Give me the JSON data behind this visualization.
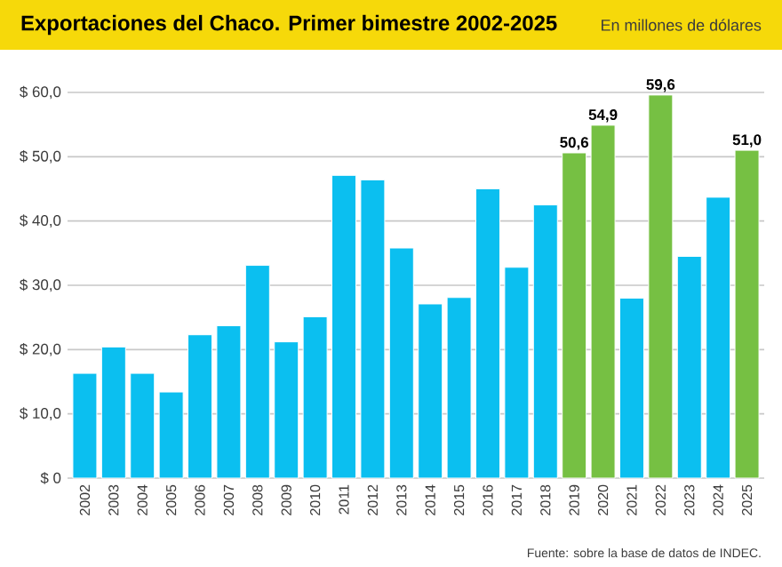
{
  "chart_data": {
    "type": "bar",
    "title": "Exportaciones del Chaco. Primer bimestre 2002-2025",
    "subtitle": "En millones de dólares",
    "categories": [
      "2002",
      "2003",
      "2004",
      "2005",
      "2006",
      "2007",
      "2008",
      "2009",
      "2010",
      "2011",
      "2012",
      "2013",
      "2014",
      "2015",
      "2016",
      "2017",
      "2018",
      "2019",
      "2020",
      "2021",
      "2022",
      "2023",
      "2024",
      "2025"
    ],
    "values": [
      16.3,
      20.4,
      16.3,
      13.4,
      22.3,
      23.7,
      33.1,
      21.2,
      25.1,
      47.1,
      46.4,
      35.8,
      27.1,
      28.1,
      45.0,
      32.8,
      42.5,
      50.6,
      54.9,
      28.0,
      59.6,
      34.5,
      43.7,
      51.0
    ],
    "colors": [
      "#0bbff0",
      "#0bbff0",
      "#0bbff0",
      "#0bbff0",
      "#0bbff0",
      "#0bbff0",
      "#0bbff0",
      "#0bbff0",
      "#0bbff0",
      "#0bbff0",
      "#0bbff0",
      "#0bbff0",
      "#0bbff0",
      "#0bbff0",
      "#0bbff0",
      "#0bbff0",
      "#0bbff0",
      "#76c043",
      "#76c043",
      "#0bbff0",
      "#76c043",
      "#0bbff0",
      "#0bbff0",
      "#76c043"
    ],
    "value_labels": [
      null,
      null,
      null,
      null,
      null,
      null,
      null,
      null,
      null,
      null,
      null,
      null,
      null,
      null,
      null,
      null,
      null,
      "50,6",
      "54,9",
      null,
      "59,6",
      null,
      null,
      "51,0"
    ],
    "ylim": [
      0,
      60
    ],
    "yticks": [
      {
        "value": 0,
        "label": "$ 0"
      },
      {
        "value": 10,
        "label": "$ 10,0"
      },
      {
        "value": 20,
        "label": "$ 20,0"
      },
      {
        "value": 30,
        "label": "$ 30,0"
      },
      {
        "value": 40,
        "label": "$ 40,0"
      },
      {
        "value": 50,
        "label": "$ 50,0"
      },
      {
        "value": 60,
        "label": "$ 60,0"
      }
    ],
    "grid": "y",
    "annotations": [
      "Fuente: sobre la base de datos de INDEC."
    ]
  }
}
